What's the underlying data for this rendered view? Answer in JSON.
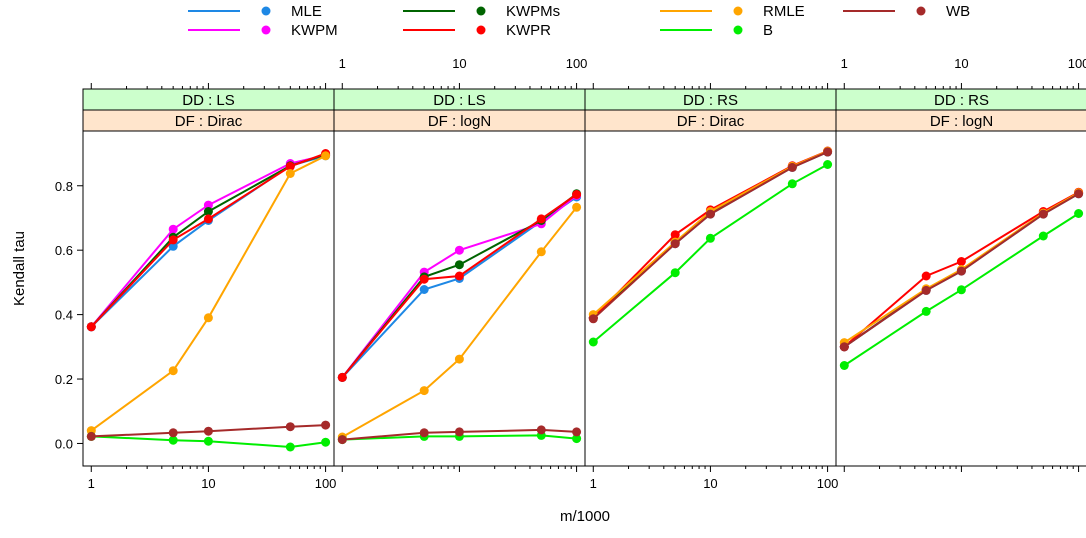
{
  "chart_data": {
    "type": "line",
    "xlabel": "m/1000",
    "ylabel": "Kendall tau",
    "x_scale": "log",
    "xlim": [
      0.85,
      118
    ],
    "ylim": [
      -0.07,
      0.97
    ],
    "x_tick_values": [
      1,
      10,
      100
    ],
    "x_tick_labels": [
      "1",
      "10",
      "100"
    ],
    "y_tick_values": [
      0.0,
      0.2,
      0.4,
      0.6,
      0.8
    ],
    "y_tick_labels": [
      "0.0",
      "0.2",
      "0.4",
      "0.6",
      "0.8"
    ],
    "x": [
      1,
      5,
      10,
      50,
      100
    ],
    "strip_colors": {
      "DD": "#ccffcc",
      "DF": "#ffe5cc"
    },
    "legend": [
      {
        "name": "MLE",
        "color": "#1e88e5"
      },
      {
        "name": "KWPM",
        "color": "#ff00ff"
      },
      {
        "name": "KWPMs",
        "color": "#006400"
      },
      {
        "name": "KWPR",
        "color": "#ff0000"
      },
      {
        "name": "RMLE",
        "color": "#ffa500"
      },
      {
        "name": "B",
        "color": "#00ee00"
      },
      {
        "name": "WB",
        "color": "#a52a2a"
      }
    ],
    "panels": [
      {
        "dd": "DD : LS",
        "df": "DF : Dirac",
        "series": [
          {
            "name": "MLE",
            "values": [
              0.362,
              0.612,
              0.692,
              0.862,
              0.893
            ]
          },
          {
            "name": "KWPM",
            "values": [
              0.362,
              0.665,
              0.74,
              0.869,
              0.895
            ]
          },
          {
            "name": "KWPMs",
            "values": [
              0.362,
              0.64,
              0.72,
              0.862,
              0.897
            ]
          },
          {
            "name": "KWPR",
            "values": [
              0.362,
              0.632,
              0.697,
              0.86,
              0.9
            ]
          },
          {
            "name": "RMLE",
            "values": [
              0.04,
              0.226,
              0.39,
              0.838,
              0.893
            ]
          },
          {
            "name": "B",
            "values": [
              0.022,
              0.01,
              0.007,
              -0.011,
              0.004
            ]
          },
          {
            "name": "WB",
            "values": [
              0.022,
              0.033,
              0.038,
              0.052,
              0.057
            ]
          }
        ]
      },
      {
        "dd": "DD : LS",
        "df": "DF : logN",
        "series": [
          {
            "name": "MLE",
            "values": [
              0.205,
              0.478,
              0.512,
              0.69,
              0.765
            ]
          },
          {
            "name": "KWPM",
            "values": [
              0.205,
              0.532,
              0.6,
              0.682,
              0.77
            ]
          },
          {
            "name": "KWPMs",
            "values": [
              0.205,
              0.517,
              0.555,
              0.692,
              0.775
            ]
          },
          {
            "name": "KWPR",
            "values": [
              0.205,
              0.51,
              0.52,
              0.697,
              0.773
            ]
          },
          {
            "name": "RMLE",
            "values": [
              0.02,
              0.164,
              0.262,
              0.595,
              0.733
            ]
          },
          {
            "name": "B",
            "values": [
              0.012,
              0.022,
              0.022,
              0.025,
              0.015
            ]
          },
          {
            "name": "WB",
            "values": [
              0.012,
              0.033,
              0.036,
              0.042,
              0.036
            ]
          }
        ]
      },
      {
        "dd": "DD : RS",
        "df": "DF : Dirac",
        "series": [
          {
            "name": "MLE",
            "values": [
              0.39,
              0.62,
              0.712,
              0.857,
              0.905
            ]
          },
          {
            "name": "KWPM",
            "values": [
              0.39,
              0.623,
              0.715,
              0.86,
              0.905
            ]
          },
          {
            "name": "KWPMs",
            "values": [
              0.39,
              0.625,
              0.713,
              0.858,
              0.905
            ]
          },
          {
            "name": "KWPR",
            "values": [
              0.39,
              0.648,
              0.725,
              0.862,
              0.908
            ]
          },
          {
            "name": "RMLE",
            "values": [
              0.4,
              0.625,
              0.72,
              0.86,
              0.907
            ]
          },
          {
            "name": "B",
            "values": [
              0.315,
              0.53,
              0.637,
              0.806,
              0.866
            ]
          },
          {
            "name": "WB",
            "values": [
              0.387,
              0.62,
              0.712,
              0.857,
              0.905
            ]
          }
        ]
      },
      {
        "dd": "DD : RS",
        "df": "DF : logN",
        "series": [
          {
            "name": "MLE",
            "values": [
              0.3,
              0.475,
              0.535,
              0.712,
              0.775
            ]
          },
          {
            "name": "KWPM",
            "values": [
              0.3,
              0.478,
              0.538,
              0.715,
              0.778
            ]
          },
          {
            "name": "KWPMs",
            "values": [
              0.3,
              0.477,
              0.537,
              0.713,
              0.776
            ]
          },
          {
            "name": "KWPR",
            "values": [
              0.3,
              0.52,
              0.565,
              0.72,
              0.78
            ]
          },
          {
            "name": "RMLE",
            "values": [
              0.313,
              0.48,
              0.54,
              0.715,
              0.778
            ]
          },
          {
            "name": "B",
            "values": [
              0.242,
              0.41,
              0.477,
              0.644,
              0.714
            ]
          },
          {
            "name": "WB",
            "values": [
              0.3,
              0.475,
              0.535,
              0.712,
              0.775
            ]
          }
        ]
      }
    ]
  }
}
